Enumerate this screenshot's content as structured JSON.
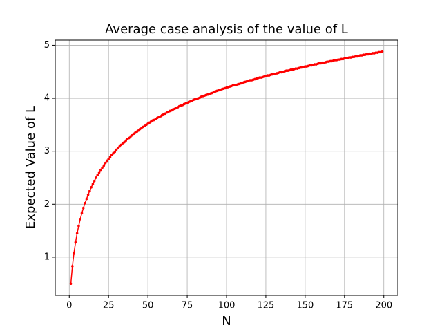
{
  "chart_data": {
    "type": "line",
    "title": "Average case analysis of the value of L",
    "xlabel": "N",
    "ylabel": "Expected Value of L",
    "color": "#ff0000",
    "grid": true,
    "xlim": [
      -8.9,
      208.9
    ],
    "xticks": [
      0,
      25,
      50,
      75,
      100,
      125,
      150,
      175,
      200
    ],
    "ylim": [
      0.281,
      5.097
    ],
    "yticks": [
      1,
      2,
      3,
      4,
      5
    ],
    "x": [
      1,
      2,
      3,
      4,
      5,
      6,
      7,
      8,
      9,
      10,
      11,
      12,
      13,
      14,
      15,
      16,
      17,
      18,
      19,
      20,
      21,
      22,
      23,
      24,
      25,
      26,
      27,
      28,
      29,
      30,
      31,
      32,
      33,
      34,
      35,
      36,
      37,
      38,
      39,
      40,
      41,
      42,
      43,
      44,
      45,
      46,
      47,
      48,
      49,
      50,
      51,
      52,
      53,
      54,
      55,
      56,
      57,
      58,
      59,
      60,
      61,
      62,
      63,
      64,
      65,
      66,
      67,
      68,
      69,
      70,
      71,
      72,
      73,
      74,
      75,
      76,
      77,
      78,
      79,
      80,
      81,
      82,
      83,
      84,
      85,
      86,
      87,
      88,
      89,
      90,
      91,
      92,
      93,
      94,
      95,
      96,
      97,
      98,
      99,
      100,
      101,
      102,
      103,
      104,
      105,
      106,
      107,
      108,
      109,
      110,
      111,
      112,
      113,
      114,
      115,
      116,
      117,
      118,
      119,
      120,
      121,
      122,
      123,
      124,
      125,
      126,
      127,
      128,
      129,
      130,
      131,
      132,
      133,
      134,
      135,
      136,
      137,
      138,
      139,
      140,
      141,
      142,
      143,
      144,
      145,
      146,
      147,
      148,
      149,
      150,
      151,
      152,
      153,
      154,
      155,
      156,
      157,
      158,
      159,
      160,
      161,
      162,
      163,
      164,
      165,
      166,
      167,
      168,
      169,
      170,
      171,
      172,
      173,
      174,
      175,
      176,
      177,
      178,
      179,
      180,
      181,
      182,
      183,
      184,
      185,
      186,
      187,
      188,
      189,
      190,
      191,
      192,
      193,
      194,
      195,
      196,
      197,
      198,
      199
    ],
    "values": [
      0.5,
      0.83,
      1.08,
      1.28,
      1.45,
      1.59,
      1.72,
      1.83,
      1.93,
      2.02,
      2.1,
      2.18,
      2.25,
      2.32,
      2.38,
      2.44,
      2.5,
      2.55,
      2.6,
      2.65,
      2.69,
      2.73,
      2.78,
      2.82,
      2.85,
      2.89,
      2.93,
      2.96,
      2.99,
      3.03,
      3.06,
      3.09,
      3.12,
      3.15,
      3.17,
      3.2,
      3.23,
      3.25,
      3.28,
      3.3,
      3.33,
      3.35,
      3.37,
      3.39,
      3.42,
      3.44,
      3.46,
      3.48,
      3.5,
      3.52,
      3.54,
      3.56,
      3.58,
      3.59,
      3.61,
      3.63,
      3.65,
      3.66,
      3.68,
      3.7,
      3.71,
      3.73,
      3.74,
      3.76,
      3.77,
      3.79,
      3.8,
      3.82,
      3.83,
      3.85,
      3.86,
      3.87,
      3.89,
      3.9,
      3.91,
      3.93,
      3.94,
      3.95,
      3.97,
      3.98,
      3.99,
      4.0,
      4.01,
      4.03,
      4.04,
      4.05,
      4.06,
      4.07,
      4.08,
      4.09,
      4.1,
      4.12,
      4.13,
      4.14,
      4.15,
      4.16,
      4.17,
      4.18,
      4.19,
      4.2,
      4.21,
      4.22,
      4.23,
      4.24,
      4.25,
      4.25,
      4.26,
      4.27,
      4.28,
      4.29,
      4.3,
      4.31,
      4.32,
      4.33,
      4.34,
      4.34,
      4.35,
      4.36,
      4.37,
      4.38,
      4.39,
      4.39,
      4.4,
      4.41,
      4.42,
      4.43,
      4.43,
      4.44,
      4.45,
      4.46,
      4.46,
      4.47,
      4.48,
      4.49,
      4.49,
      4.5,
      4.51,
      4.52,
      4.52,
      4.53,
      4.54,
      4.54,
      4.55,
      4.56,
      4.56,
      4.57,
      4.58,
      4.58,
      4.59,
      4.6,
      4.6,
      4.61,
      4.62,
      4.62,
      4.63,
      4.64,
      4.64,
      4.65,
      4.66,
      4.66,
      4.67,
      4.67,
      4.68,
      4.69,
      4.69,
      4.7,
      4.7,
      4.71,
      4.72,
      4.72,
      4.73,
      4.73,
      4.74,
      4.74,
      4.75,
      4.76,
      4.76,
      4.77,
      4.77,
      4.78,
      4.78,
      4.79,
      4.79,
      4.8,
      4.81,
      4.81,
      4.82,
      4.82,
      4.83,
      4.83,
      4.84,
      4.84,
      4.85,
      4.85,
      4.86,
      4.86,
      4.87,
      4.87,
      4.88
    ]
  }
}
